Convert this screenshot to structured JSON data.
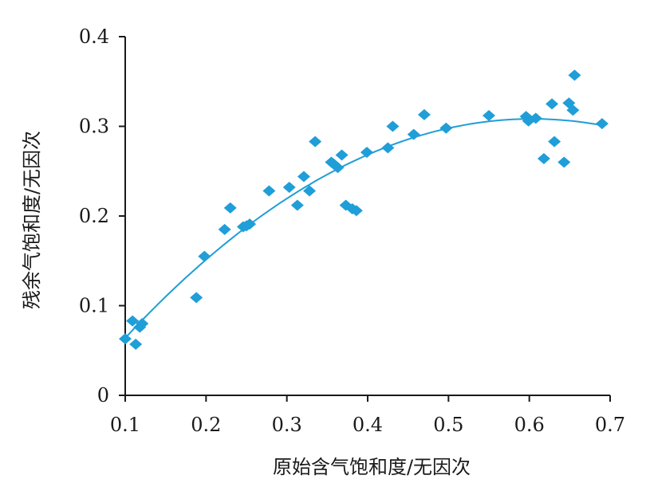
{
  "chart_data": {
    "type": "scatter",
    "xlabel": "原始含气饱和度/无因次",
    "ylabel": "残余气饱和度/无因次",
    "xlim": [
      0.1,
      0.7
    ],
    "ylim": [
      0,
      0.4
    ],
    "x_ticks": [
      0.1,
      0.2,
      0.3,
      0.4,
      0.5,
      0.6,
      0.7
    ],
    "y_ticks": [
      0,
      0.1,
      0.2,
      0.3,
      0.4
    ],
    "x_tick_labels": [
      "0.1",
      "0.2",
      "0.3",
      "0.4",
      "0.5",
      "0.6",
      "0.7"
    ],
    "y_tick_labels": [
      "0",
      "0.1",
      "0.2",
      "0.3",
      "0.4"
    ],
    "grid": false,
    "legend": "none",
    "marker": "diamond",
    "marker_color": "#1f9ed8",
    "trendline": {
      "type": "polynomial",
      "order": 2,
      "color": "#1f9ed8"
    },
    "points": [
      {
        "x": 0.1,
        "y": 0.063
      },
      {
        "x": 0.109,
        "y": 0.083
      },
      {
        "x": 0.113,
        "y": 0.057
      },
      {
        "x": 0.118,
        "y": 0.076
      },
      {
        "x": 0.121,
        "y": 0.08
      },
      {
        "x": 0.188,
        "y": 0.109
      },
      {
        "x": 0.198,
        "y": 0.155
      },
      {
        "x": 0.223,
        "y": 0.185
      },
      {
        "x": 0.23,
        "y": 0.209
      },
      {
        "x": 0.246,
        "y": 0.188
      },
      {
        "x": 0.25,
        "y": 0.189
      },
      {
        "x": 0.254,
        "y": 0.191
      },
      {
        "x": 0.278,
        "y": 0.228
      },
      {
        "x": 0.303,
        "y": 0.232
      },
      {
        "x": 0.313,
        "y": 0.212
      },
      {
        "x": 0.321,
        "y": 0.244
      },
      {
        "x": 0.328,
        "y": 0.228
      },
      {
        "x": 0.335,
        "y": 0.283
      },
      {
        "x": 0.355,
        "y": 0.26
      },
      {
        "x": 0.358,
        "y": 0.258
      },
      {
        "x": 0.363,
        "y": 0.254
      },
      {
        "x": 0.368,
        "y": 0.268
      },
      {
        "x": 0.373,
        "y": 0.212
      },
      {
        "x": 0.381,
        "y": 0.208
      },
      {
        "x": 0.386,
        "y": 0.206
      },
      {
        "x": 0.399,
        "y": 0.271
      },
      {
        "x": 0.425,
        "y": 0.276
      },
      {
        "x": 0.431,
        "y": 0.3
      },
      {
        "x": 0.457,
        "y": 0.291
      },
      {
        "x": 0.47,
        "y": 0.313
      },
      {
        "x": 0.497,
        "y": 0.298
      },
      {
        "x": 0.55,
        "y": 0.312
      },
      {
        "x": 0.596,
        "y": 0.311
      },
      {
        "x": 0.599,
        "y": 0.306
      },
      {
        "x": 0.608,
        "y": 0.309
      },
      {
        "x": 0.618,
        "y": 0.264
      },
      {
        "x": 0.628,
        "y": 0.325
      },
      {
        "x": 0.631,
        "y": 0.283
      },
      {
        "x": 0.643,
        "y": 0.26
      },
      {
        "x": 0.649,
        "y": 0.326
      },
      {
        "x": 0.654,
        "y": 0.318
      },
      {
        "x": 0.656,
        "y": 0.357
      },
      {
        "x": 0.69,
        "y": 0.303
      }
    ]
  }
}
